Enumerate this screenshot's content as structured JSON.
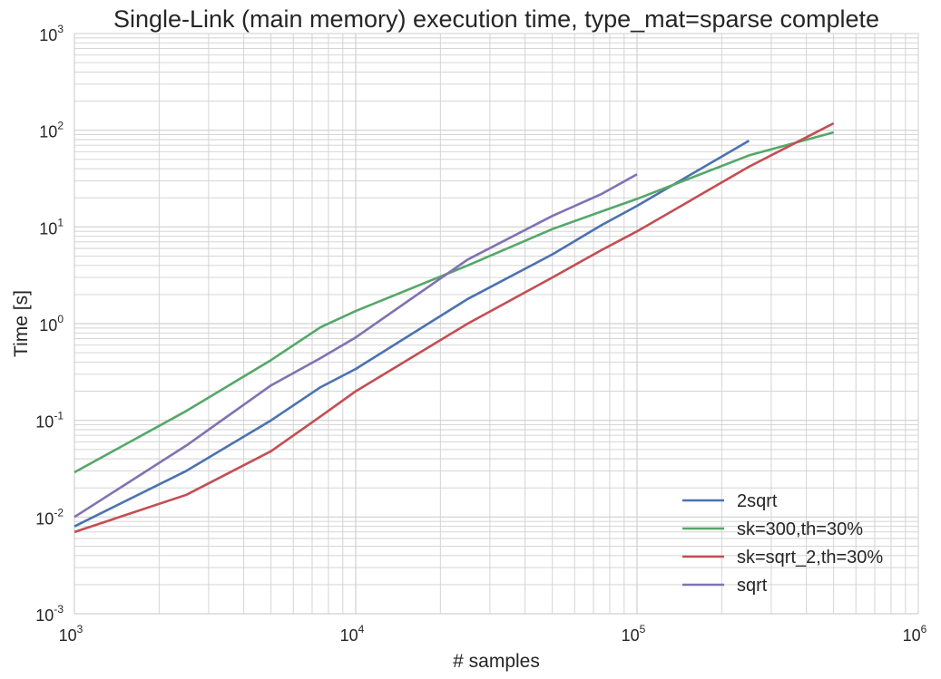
{
  "chart_data": {
    "type": "line",
    "title": "Single-Link (main memory) execution time, type_mat=sparse complete",
    "xlabel": "# samples",
    "ylabel": "Time [s]",
    "xscale": "log",
    "yscale": "log",
    "xlim": [
      1000,
      1000000
    ],
    "ylim": [
      0.001,
      1000
    ],
    "grid": true,
    "legend_position": "lower-right",
    "x_ticks": [
      {
        "base": "10",
        "exp": "3"
      },
      {
        "base": "10",
        "exp": "4"
      },
      {
        "base": "10",
        "exp": "5"
      },
      {
        "base": "10",
        "exp": "6"
      }
    ],
    "y_ticks": [
      {
        "base": "10",
        "exp": "-3"
      },
      {
        "base": "10",
        "exp": "-2"
      },
      {
        "base": "10",
        "exp": "-1"
      },
      {
        "base": "10",
        "exp": "0"
      },
      {
        "base": "10",
        "exp": "1"
      },
      {
        "base": "10",
        "exp": "2"
      },
      {
        "base": "10",
        "exp": "3"
      }
    ],
    "series": [
      {
        "name": "2sqrt",
        "color": "#4C72B0",
        "x": [
          1000,
          2500,
          5000,
          7500,
          10000,
          25000,
          50000,
          75000,
          100000,
          250000
        ],
        "y": [
          0.008,
          0.03,
          0.1,
          0.22,
          0.34,
          1.8,
          5.2,
          10.5,
          16.5,
          78
        ]
      },
      {
        "name": "sk=300,th=30%",
        "color": "#55A868",
        "x": [
          1000,
          2500,
          5000,
          7500,
          10000,
          25000,
          50000,
          75000,
          100000,
          250000,
          500000
        ],
        "y": [
          0.029,
          0.125,
          0.42,
          0.92,
          1.35,
          4.0,
          9.5,
          14.5,
          19.5,
          55,
          95
        ]
      },
      {
        "name": "sk=sqrt_2,th=30%",
        "color": "#C44E52",
        "x": [
          1000,
          2500,
          5000,
          7500,
          10000,
          25000,
          50000,
          75000,
          100000,
          250000,
          500000
        ],
        "y": [
          0.007,
          0.017,
          0.048,
          0.11,
          0.2,
          1.0,
          3.0,
          5.8,
          9.0,
          42,
          118
        ]
      },
      {
        "name": "sqrt",
        "color": "#8172B2",
        "x": [
          1000,
          2500,
          5000,
          7500,
          10000,
          25000,
          50000,
          75000,
          100000
        ],
        "y": [
          0.01,
          0.055,
          0.23,
          0.44,
          0.72,
          4.6,
          13,
          22,
          35
        ]
      }
    ]
  }
}
